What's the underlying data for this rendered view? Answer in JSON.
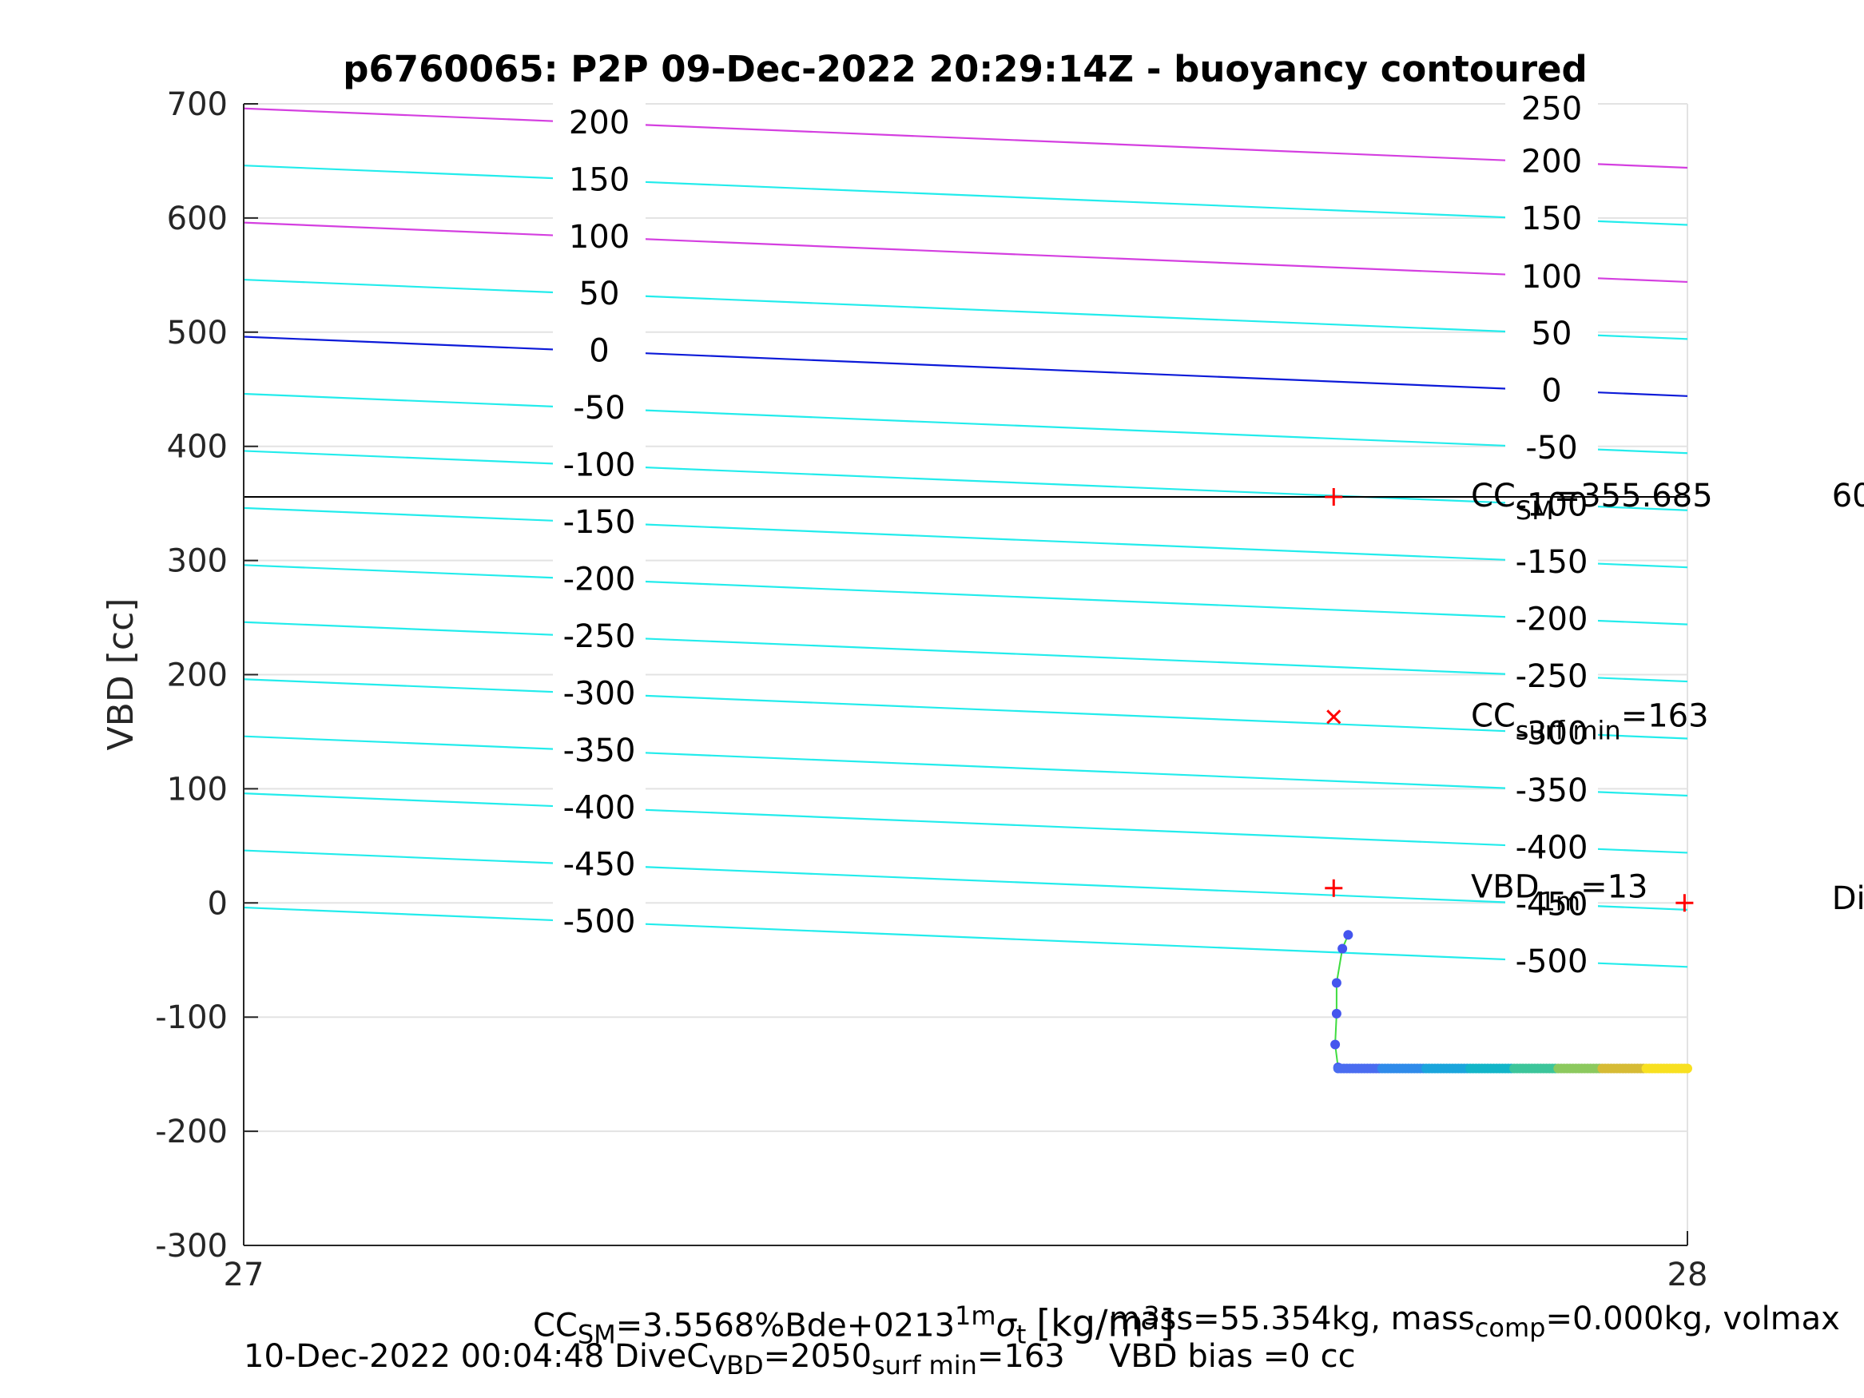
{
  "chart_data": {
    "type": "line",
    "title": "p6760065: P2P 09-Dec-2022 20:29:14Z - buoyancy contoured",
    "ylabel": "VBD [cc]",
    "xlim": [
      27,
      28
    ],
    "ylim": [
      -300,
      700
    ],
    "x_ticks": [
      "27",
      "28"
    ],
    "y_ticks": [
      "-300",
      "-200",
      "-100",
      "0",
      "100",
      "200",
      "300",
      "400",
      "500",
      "600",
      "700"
    ],
    "grid": true,
    "contours": {
      "left_x": 27.0,
      "right_x": 28.0,
      "lines": [
        {
          "level": 200,
          "y_left": 696,
          "y_right": 644,
          "color": "#d43fe0"
        },
        {
          "level": 150,
          "y_left": 646,
          "y_right": 594,
          "color": "#23ecec"
        },
        {
          "level": 100,
          "y_left": 596,
          "y_right": 544,
          "color": "#d43fe0"
        },
        {
          "level": 50,
          "y_left": 546,
          "y_right": 494,
          "color": "#23ecec"
        },
        {
          "level": 0,
          "y_left": 496,
          "y_right": 444,
          "color": "#0c1ad8"
        },
        {
          "level": -50,
          "y_left": 446,
          "y_right": 394,
          "color": "#23ecec"
        },
        {
          "level": -100,
          "y_left": 396,
          "y_right": 344,
          "color": "#23ecec"
        },
        {
          "level": -150,
          "y_left": 346,
          "y_right": 294,
          "color": "#23ecec"
        },
        {
          "level": -200,
          "y_left": 296,
          "y_right": 244,
          "color": "#23ecec"
        },
        {
          "level": -250,
          "y_left": 246,
          "y_right": 194,
          "color": "#23ecec"
        },
        {
          "level": -300,
          "y_left": 196,
          "y_right": 144,
          "color": "#23ecec"
        },
        {
          "level": -350,
          "y_left": 146,
          "y_right": 94,
          "color": "#23ecec"
        },
        {
          "level": -400,
          "y_left": 96,
          "y_right": 44,
          "color": "#23ecec"
        },
        {
          "level": -450,
          "y_left": 46,
          "y_right": -6,
          "color": "#23ecec"
        },
        {
          "level": -500,
          "y_left": -4,
          "y_right": -56,
          "color": "#23ecec"
        }
      ],
      "left_labels": [
        {
          "text": "200",
          "y": 684
        },
        {
          "text": "150",
          "y": 634
        },
        {
          "text": "100",
          "y": 584
        },
        {
          "text": "50",
          "y": 534
        },
        {
          "text": "0",
          "y": 484
        },
        {
          "text": "-50",
          "y": 434
        },
        {
          "text": "-100",
          "y": 384
        },
        {
          "text": "-150",
          "y": 334
        },
        {
          "text": "-200",
          "y": 284
        },
        {
          "text": "-250",
          "y": 234
        },
        {
          "text": "-300",
          "y": 184
        },
        {
          "text": "-350",
          "y": 134
        },
        {
          "text": "-400",
          "y": 84
        },
        {
          "text": "-450",
          "y": 34
        },
        {
          "text": "-500",
          "y": -16
        }
      ],
      "right_labels": [
        {
          "text": "250",
          "y": 696
        },
        {
          "text": "200",
          "y": 650
        },
        {
          "text": "150",
          "y": 600
        },
        {
          "text": "100",
          "y": 549
        },
        {
          "text": "50",
          "y": 499
        },
        {
          "text": "0",
          "y": 449
        },
        {
          "text": "-50",
          "y": 399
        },
        {
          "text": "-100",
          "y": 349
        },
        {
          "text": "-150",
          "y": 299
        },
        {
          "text": "-200",
          "y": 249
        },
        {
          "text": "-250",
          "y": 199
        },
        {
          "text": "-300",
          "y": 149
        },
        {
          "text": "-350",
          "y": 99
        },
        {
          "text": "-400",
          "y": 49
        },
        {
          "text": "-450",
          "y": -1
        },
        {
          "text": "-500",
          "y": -51
        }
      ]
    },
    "reference_line": {
      "y": 355.685,
      "color": "#000000"
    },
    "markers": [
      {
        "x": 27.755,
        "y": 355.685,
        "symbol": "+",
        "color": "#ff0000"
      },
      {
        "x": 27.755,
        "y": 163,
        "symbol": "x",
        "color": "#ff0000"
      },
      {
        "x": 27.755,
        "y": 13,
        "symbol": "+",
        "color": "#ff0000"
      },
      {
        "x": 27.998,
        "y": 0,
        "symbol": "+",
        "color": "#ff0000"
      }
    ],
    "annotations": [
      {
        "main": "CC",
        "sub": "SM",
        "value": "=355.685",
        "x": 27.85,
        "y": 355.685
      },
      {
        "main": "CC",
        "sub": "surf min",
        "value": "=163",
        "x": 27.85,
        "y": 163
      },
      {
        "main": "VBD",
        "sub": "1m",
        "value": "=13",
        "x": 27.85,
        "y": 13
      },
      {
        "main": "60",
        "sub": "",
        "value": "",
        "x": 28.1,
        "y": 355.685
      },
      {
        "main": "Di",
        "sub": "",
        "value": "",
        "x": 28.1,
        "y": 3
      }
    ],
    "series": [
      {
        "descent": [
          {
            "x": 27.765,
            "y": -28
          },
          {
            "x": 27.761,
            "y": -40
          },
          {
            "x": 27.757,
            "y": -70
          },
          {
            "x": 27.757,
            "y": -97
          },
          {
            "x": 27.756,
            "y": -124
          },
          {
            "x": 27.758,
            "y": -144
          }
        ],
        "descent_color": "#4455ee",
        "trail_x_start": 27.758,
        "trail_x_end": 28.0,
        "trail_y": -145,
        "trail_colors": [
          "#4a6cf0",
          "#2f8bea",
          "#1aa5dc",
          "#12b5c8",
          "#3cc59a",
          "#8cc95e",
          "#d6bb35",
          "#f8e020"
        ],
        "line_color": "#3fdc3f"
      }
    ]
  },
  "footer": {
    "line1_left": "CC",
    "line1_left_sub": "SM",
    "line1_left_val": "=3.5568%Bde+0213",
    "line1_mid": "1m",
    "line1_sigma": "σ",
    "line1_sigma_sub": "t",
    "line1_units": "[kg/m",
    "line1_units_sup": "3",
    "line1_units_end": "]",
    "line2_date": "10-Dec-2022 00:04:48",
    "line2_mid_main": "DiveC",
    "line2_mid_sub": "VBD",
    "line2_mid_val": "=2050",
    "line2_mid_sub2": "surf min",
    "line2_mid_val2": "=163",
    "right1_a": "mass=55.354kg, mass",
    "right1_sub": "comp",
    "right1_b": "=0.000kg, volmax",
    "right2": "VBD bias =0 cc"
  }
}
